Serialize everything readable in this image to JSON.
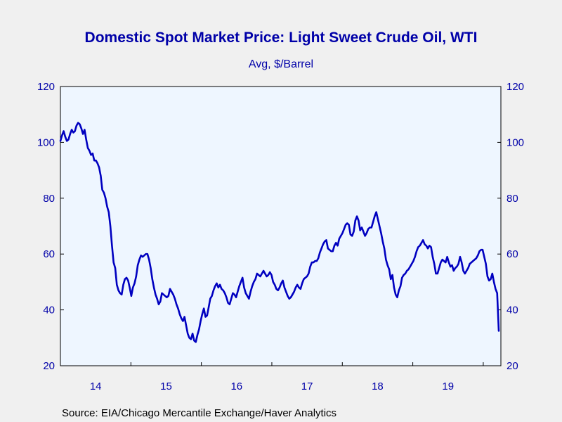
{
  "chart_data": {
    "type": "line",
    "title": "Domestic Spot Market Price: Light Sweet Crude Oil, WTI",
    "subtitle": "Avg, $/Barrel",
    "source": "Source:  EIA/Chicago Mercantile Exchange/Haver Analytics",
    "xlabel": "",
    "ylabel": "",
    "x_tick_labels": [
      "14",
      "15",
      "16",
      "17",
      "18",
      "19"
    ],
    "x_range": [
      "2014-01",
      "2020-03"
    ],
    "y_ticks": [
      20,
      40,
      60,
      80,
      100,
      120
    ],
    "ylim": [
      20,
      120
    ],
    "grid": false,
    "legend": "none",
    "frequency": "weekly",
    "line_color": "#0000c0",
    "series": [
      {
        "values": [
          100.5,
          102.5,
          104.0,
          102.0,
          100.5,
          101.0,
          103.0,
          104.5,
          103.5,
          104.0,
          106.0,
          107.0,
          106.5,
          105.0,
          103.0,
          104.5,
          101.0,
          98.0,
          97.0,
          95.5,
          96.0,
          93.5,
          93.5,
          92.5,
          91.0,
          88.0,
          83.0,
          82.0,
          80.0,
          77.0,
          75.0,
          70.0,
          63.0,
          57.0,
          55.0,
          49.0,
          47.0,
          46.0,
          45.5,
          49.0,
          51.0,
          51.5,
          50.5,
          48.0,
          45.0,
          48.0,
          49.5,
          52.0,
          56.0,
          58.0,
          59.5,
          59.0,
          59.5,
          60.0,
          60.0,
          58.0,
          55.0,
          51.0,
          48.0,
          45.5,
          44.0,
          42.0,
          43.0,
          46.0,
          45.5,
          45.0,
          44.5,
          45.0,
          47.5,
          46.5,
          45.5,
          44.0,
          42.0,
          40.5,
          38.5,
          37.0,
          36.0,
          37.5,
          34.5,
          31.5,
          30.0,
          29.5,
          31.5,
          29.0,
          28.5,
          31.0,
          33.0,
          36.0,
          38.5,
          40.5,
          37.5,
          38.0,
          41.0,
          44.0,
          45.0,
          47.0,
          48.5,
          49.5,
          48.0,
          49.0,
          47.5,
          47.0,
          46.0,
          44.5,
          42.5,
          42.0,
          44.0,
          46.0,
          45.5,
          44.5,
          46.5,
          48.5,
          50.0,
          51.5,
          48.0,
          46.0,
          45.0,
          44.0,
          46.5,
          48.5,
          50.0,
          51.0,
          53.0,
          52.5,
          52.0,
          53.0,
          54.0,
          53.0,
          52.0,
          52.5,
          53.5,
          52.5,
          50.0,
          49.0,
          47.5,
          47.0,
          48.0,
          49.5,
          50.5,
          48.0,
          46.5,
          45.0,
          44.0,
          44.5,
          45.5,
          46.5,
          48.0,
          49.0,
          48.0,
          47.5,
          49.5,
          51.0,
          51.5,
          52.0,
          53.0,
          55.5,
          57.0,
          57.0,
          57.5,
          57.5,
          58.5,
          60.5,
          62.0,
          63.5,
          64.5,
          65.0,
          62.0,
          61.5,
          61.0,
          61.0,
          63.0,
          64.0,
          63.0,
          65.5,
          66.5,
          67.5,
          69.0,
          70.5,
          71.0,
          70.5,
          67.0,
          66.5,
          68.0,
          72.0,
          73.5,
          72.0,
          68.5,
          69.5,
          68.0,
          66.5,
          67.5,
          69.0,
          69.5,
          69.5,
          71.5,
          73.5,
          75.0,
          72.5,
          70.0,
          67.5,
          64.5,
          62.0,
          58.0,
          56.0,
          54.5,
          51.0,
          52.5,
          48.0,
          45.5,
          44.5,
          47.0,
          48.5,
          51.5,
          52.5,
          53.0,
          54.0,
          54.5,
          55.5,
          56.5,
          57.5,
          59.0,
          61.0,
          62.5,
          63.0,
          64.0,
          65.0,
          63.5,
          63.0,
          62.0,
          63.0,
          62.5,
          59.0,
          56.5,
          53.0,
          53.0,
          55.0,
          57.0,
          58.0,
          57.5,
          57.0,
          59.0,
          57.0,
          55.5,
          56.0,
          54.0,
          55.0,
          55.5,
          56.5,
          59.0,
          57.0,
          54.0,
          53.0,
          54.0,
          55.0,
          56.5,
          57.0,
          57.5,
          58.0,
          58.5,
          59.5,
          61.0,
          61.5,
          61.5,
          59.0,
          56.5,
          52.0,
          50.5,
          51.0,
          53.0,
          50.0,
          47.5,
          46.0,
          32.5
        ]
      }
    ]
  }
}
